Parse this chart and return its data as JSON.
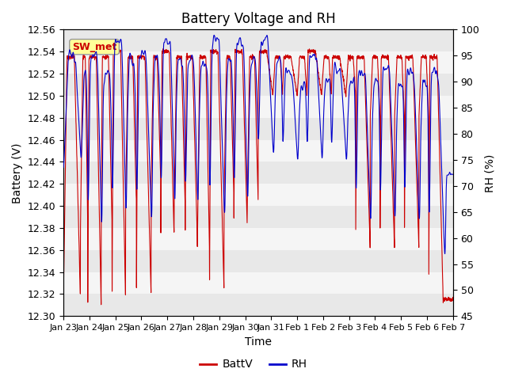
{
  "title": "Battery Voltage and RH",
  "xlabel": "Time",
  "ylabel_left": "Battery (V)",
  "ylabel_right": "RH (%)",
  "ylim_left": [
    12.3,
    12.56
  ],
  "ylim_right": [
    45,
    100
  ],
  "yticks_left": [
    12.3,
    12.32,
    12.34,
    12.36,
    12.38,
    12.4,
    12.42,
    12.44,
    12.46,
    12.48,
    12.5,
    12.52,
    12.54,
    12.56
  ],
  "yticks_right": [
    45,
    50,
    55,
    60,
    65,
    70,
    75,
    80,
    85,
    90,
    95,
    100
  ],
  "xtick_labels": [
    "Jan 23",
    "Jan 24",
    "Jan 25",
    "Jan 26",
    "Jan 27",
    "Jan 28",
    "Jan 29",
    "Jan 30",
    "Jan 31",
    "Feb 1",
    "Feb 2",
    "Feb 3",
    "Feb 4",
    "Feb 5",
    "Feb 6",
    "Feb 7"
  ],
  "annotation_text": "SW_met",
  "annotation_color": "#cc0000",
  "annotation_bg": "#ffff99",
  "batt_color": "#cc0000",
  "rh_color": "#0000cc",
  "band_colors": [
    "#e8e8e8",
    "#f5f5f5"
  ],
  "legend_batt": "BattV",
  "legend_rh": "RH",
  "title_fontsize": 12,
  "label_fontsize": 10,
  "tick_fontsize": 9
}
